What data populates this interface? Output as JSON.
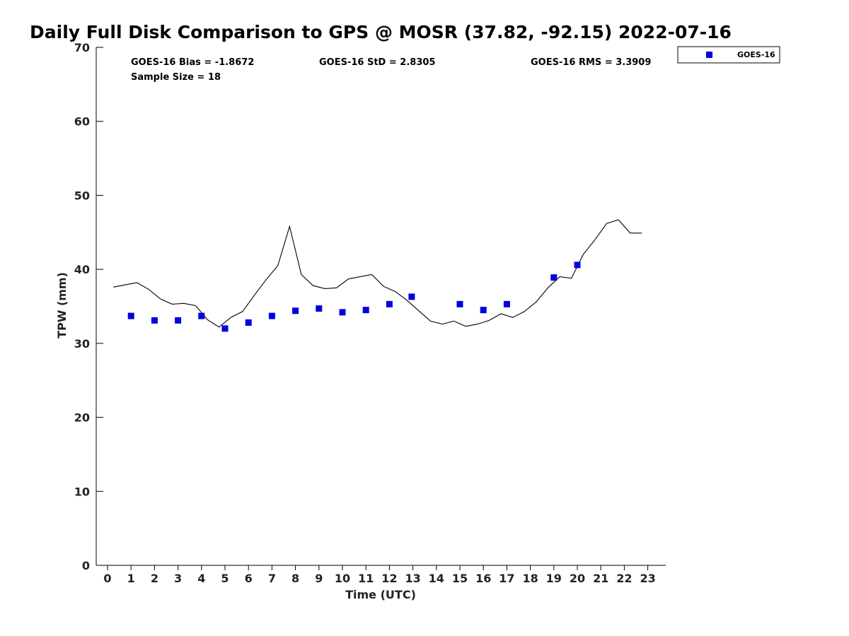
{
  "chart_data": {
    "type": "scatter",
    "title": "Daily Full Disk Comparison to GPS @ MOSR (37.82, -92.15) 2022-07-16",
    "xlabel": "Time (UTC)",
    "ylabel": "TPW (mm)",
    "xlim": [
      -0.5,
      23.75
    ],
    "ylim": [
      0,
      70
    ],
    "xticks": [
      0,
      1,
      2,
      3,
      4,
      5,
      6,
      7,
      8,
      9,
      10,
      11,
      12,
      13,
      14,
      15,
      16,
      17,
      18,
      19,
      20,
      21,
      22,
      23
    ],
    "yticks": [
      0,
      10,
      20,
      30,
      40,
      50,
      60,
      70
    ],
    "grid": false,
    "legend_position": "top-right, outside plot",
    "stats": {
      "bias": "GOES-16 Bias = -1.8672",
      "std": "GOES-16 StD = 2.8305",
      "rms": "GOES-16 RMS = 3.3909",
      "sample": "Sample Size = 18"
    },
    "series": [
      {
        "name": "GOES-16",
        "kind": "scatter",
        "marker": "square",
        "color": "#0000dd",
        "points": [
          [
            1.0,
            33.7
          ],
          [
            2.0,
            33.1
          ],
          [
            3.0,
            33.1
          ],
          [
            4.0,
            33.7
          ],
          [
            5.0,
            32.0
          ],
          [
            6.0,
            32.8
          ],
          [
            7.0,
            33.7
          ],
          [
            8.0,
            34.4
          ],
          [
            9.0,
            34.7
          ],
          [
            10.0,
            34.2
          ],
          [
            11.0,
            34.5
          ],
          [
            12.0,
            35.3
          ],
          [
            12.95,
            36.3
          ],
          [
            15.0,
            35.3
          ],
          [
            16.0,
            34.5
          ],
          [
            17.0,
            35.3
          ],
          [
            19.0,
            38.9
          ],
          [
            20.0,
            40.6
          ]
        ]
      },
      {
        "kind": "line",
        "color": "#000000",
        "points": [
          [
            0.25,
            37.6
          ],
          [
            0.75,
            37.9
          ],
          [
            1.25,
            38.2
          ],
          [
            1.75,
            37.3
          ],
          [
            2.25,
            36.0
          ],
          [
            2.75,
            35.3
          ],
          [
            3.25,
            35.4
          ],
          [
            3.75,
            35.1
          ],
          [
            4.25,
            33.2
          ],
          [
            4.75,
            32.2
          ],
          [
            5.25,
            33.5
          ],
          [
            5.75,
            34.3
          ],
          [
            6.25,
            36.5
          ],
          [
            6.75,
            38.6
          ],
          [
            7.25,
            40.5
          ],
          [
            7.75,
            45.8
          ],
          [
            8.25,
            39.3
          ],
          [
            8.75,
            37.8
          ],
          [
            9.25,
            37.4
          ],
          [
            9.75,
            37.5
          ],
          [
            10.25,
            38.7
          ],
          [
            10.75,
            39.0
          ],
          [
            11.25,
            39.3
          ],
          [
            11.75,
            37.7
          ],
          [
            12.25,
            37.0
          ],
          [
            12.75,
            35.8
          ],
          [
            13.25,
            34.4
          ],
          [
            13.75,
            33.0
          ],
          [
            14.25,
            32.6
          ],
          [
            14.75,
            33.0
          ],
          [
            15.25,
            32.3
          ],
          [
            15.75,
            32.6
          ],
          [
            16.25,
            33.1
          ],
          [
            16.75,
            34.0
          ],
          [
            17.25,
            33.5
          ],
          [
            17.75,
            34.3
          ],
          [
            18.25,
            35.6
          ],
          [
            18.75,
            37.5
          ],
          [
            19.25,
            39.0
          ],
          [
            19.75,
            38.8
          ],
          [
            20.25,
            42.0
          ],
          [
            20.75,
            44.0
          ],
          [
            21.25,
            46.2
          ],
          [
            21.75,
            46.7
          ],
          [
            22.25,
            44.9
          ],
          [
            22.75,
            44.9
          ]
        ]
      }
    ]
  }
}
